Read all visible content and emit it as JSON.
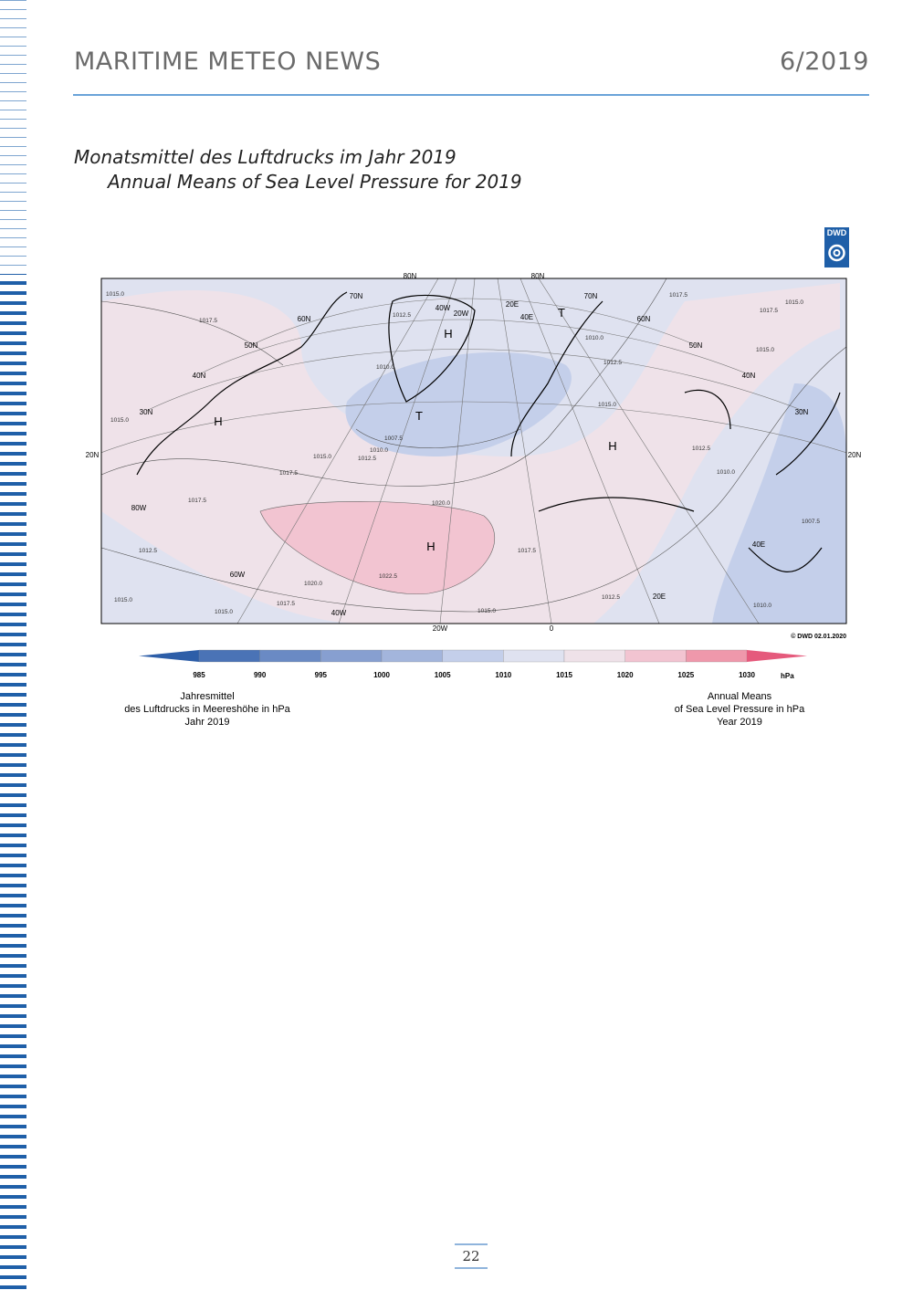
{
  "header": {
    "title": "MARITIME METEO NEWS",
    "issue": "6/2019"
  },
  "titles": {
    "german": "Monatsmittel des Luftdrucks im Jahr 2019",
    "english": "Annual Means of Sea Level Pressure for 2019"
  },
  "logo": "DWD",
  "map": {
    "labels": [
      "60N",
      "50N",
      "40N",
      "30N",
      "20N",
      "20N",
      "80W",
      "60W",
      "40W",
      "20W",
      "0",
      "20E",
      "40E",
      "30N",
      "40N",
      "50N",
      "60N",
      "70N",
      "80N",
      "80N",
      "70N",
      "40W",
      "20W",
      "20E",
      "40E"
    ],
    "systems": [
      "H",
      "T",
      "H",
      "T",
      "H",
      "H"
    ],
    "contours": [
      "1017.5",
      "1015.0",
      "1015.0",
      "1017.5",
      "1015.0",
      "1012.5",
      "1010.0",
      "1007.5",
      "1020.0",
      "1022.5",
      "1020.0",
      "1017.5",
      "1015.0",
      "1015.0",
      "1012.5",
      "1017.5",
      "1015.0",
      "1017.5",
      "1012.5",
      "1012.5",
      "1010.0",
      "1012.5",
      "1015.0",
      "1010.0",
      "1017.5",
      "1017.5",
      "1015.0",
      "1015.0",
      "1007.5",
      "1010.0",
      "1010.0",
      "1012.5"
    ],
    "copyright": "© DWD 02.01.2020"
  },
  "colorbar": {
    "ticks": [
      985,
      990,
      995,
      1000,
      1005,
      1010,
      1015,
      1020,
      1025,
      1030
    ],
    "unit": "hPa",
    "colors": [
      "#2d5ea8",
      "#4a73b6",
      "#6a8ac4",
      "#879fd0",
      "#a3b5dc",
      "#c4cfea",
      "#dfe2f0",
      "#efe2e9",
      "#f2c4d1",
      "#ef98ab",
      "#e55a7c"
    ]
  },
  "caption_left": [
    "Jahresmittel",
    "des Luftdrucks in Meereshöhe in hPa",
    "Jahr 2019"
  ],
  "caption_right": [
    "Annual Means",
    "of Sea Level Pressure in hPa",
    "Year 2019"
  ],
  "page_number": "22"
}
